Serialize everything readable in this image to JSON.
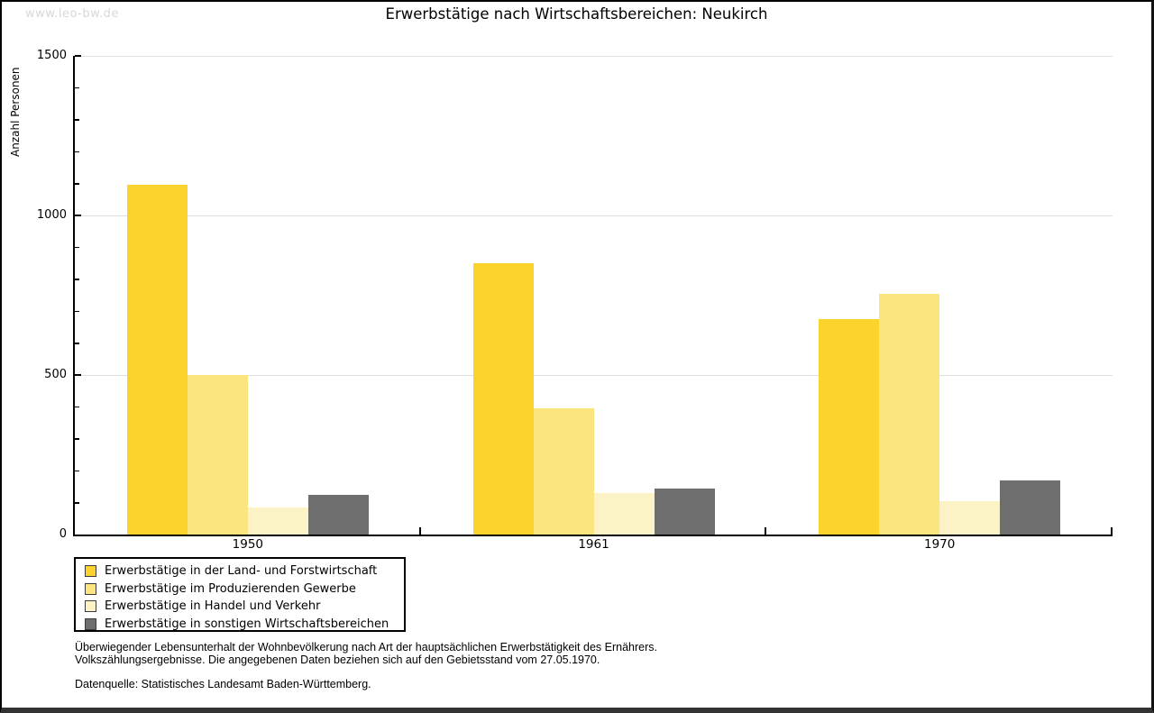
{
  "page": {
    "watermark": "www.leo-bw.de",
    "background": "#ffffff",
    "border_color": "#000000"
  },
  "chart_data": {
    "type": "bar",
    "title": "Erwerbstätige nach Wirtschaftsbereichen: Neukirch",
    "ylabel": "Anzahl Personen",
    "categories": [
      "1950",
      "1961",
      "1970"
    ],
    "series": [
      {
        "name": "Erwerbstätige in der Land- und Forstwirtschaft",
        "color": "#FCD32D",
        "values": [
          1095,
          850,
          675
        ]
      },
      {
        "name": "Erwerbstätige im Produzierenden Gewerbe",
        "color": "#FAE57E",
        "values": [
          500,
          395,
          755
        ]
      },
      {
        "name": "Erwerbstätige in Handel und Verkehr",
        "color": "#FBF3C5",
        "values": [
          85,
          130,
          105
        ]
      },
      {
        "name": "Erwerbstätige in sonstigen Wirtschaftsbereichen",
        "color": "#6E6E6E",
        "values": [
          125,
          145,
          170
        ]
      }
    ],
    "ylim": [
      0,
      1500
    ],
    "yticks": [
      0,
      500,
      1000,
      1500
    ],
    "minor_tick_step": 100,
    "grid": true,
    "gridline_color": "#e0e0e0",
    "legend_position": "bottom-left"
  },
  "footer": {
    "line1": "Überwiegender Lebensunterhalt der Wohnbevölkerung nach Art der hauptsächlichen Erwerbstätigkeit des Ernährers.",
    "line2": "Volkszählungsergebnisse. Die angegebenen Daten beziehen sich auf den Gebietsstand vom 27.05.1970.",
    "source": "Datenquelle: Statistisches Landesamt Baden-Württemberg."
  }
}
